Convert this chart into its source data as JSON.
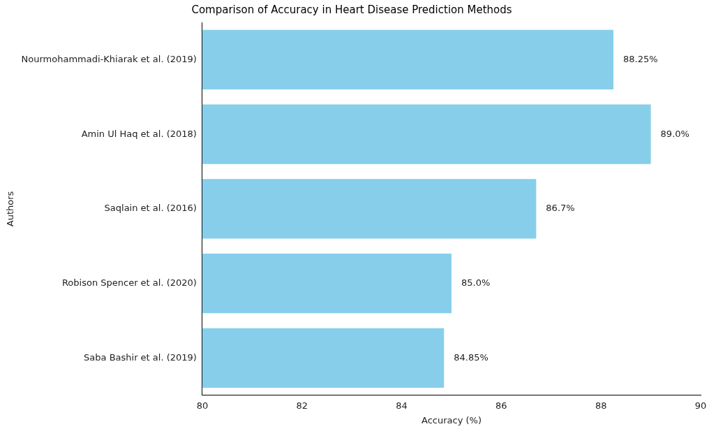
{
  "chart_data": {
    "type": "bar",
    "orientation": "horizontal",
    "title": "Comparison of Accuracy in Heart Disease Prediction Methods",
    "xlabel": "Accuracy (%)",
    "ylabel": "Authors",
    "categories": [
      "Nourmohammadi-Khiarak et al. (2019)",
      "Amin Ul Haq et al. (2018)",
      "Saqlain et al. (2016)",
      "Robison Spencer et al. (2020)",
      "Saba Bashir et al. (2019)"
    ],
    "values": [
      88.25,
      89.0,
      86.7,
      85.0,
      84.85
    ],
    "value_labels": [
      "88.25%",
      "89.0%",
      "86.7%",
      "85.0%",
      "84.85%"
    ],
    "color": "#87ceeb",
    "xlim": [
      80,
      90
    ],
    "xticks": [
      80,
      82,
      84,
      86,
      88,
      90
    ],
    "grid": false,
    "legend": false
  }
}
